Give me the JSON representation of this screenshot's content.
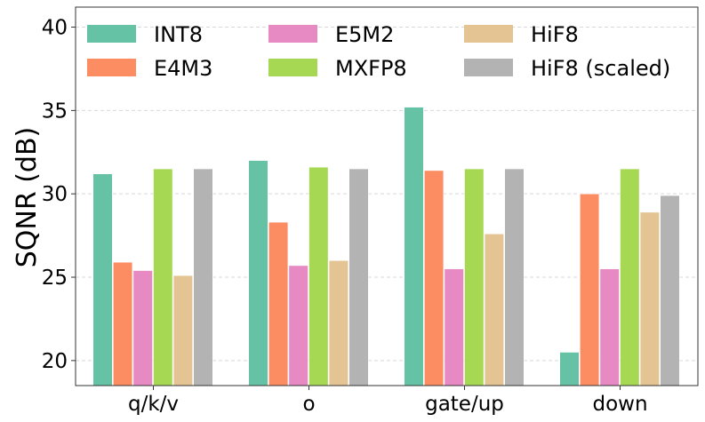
{
  "chart_data": {
    "type": "bar",
    "title": "",
    "xlabel": "",
    "ylabel": "SQNR (dB)",
    "ylim": [
      18.5,
      41.2
    ],
    "yticks": [
      20,
      25,
      30,
      35,
      40
    ],
    "grid": "horizontal-dashed",
    "legend_position": "top",
    "categories": [
      "q/k/v",
      "o",
      "gate/up",
      "down"
    ],
    "series": [
      {
        "name": "INT8",
        "color": "#66c2a5",
        "values": [
          31.2,
          32.0,
          35.2,
          20.5
        ]
      },
      {
        "name": "E4M3",
        "color": "#fc8d62",
        "values": [
          25.9,
          28.3,
          31.4,
          30.0
        ]
      },
      {
        "name": "E5M2",
        "color": "#e78ac3",
        "values": [
          25.4,
          25.7,
          25.5,
          25.5
        ]
      },
      {
        "name": "MXFP8",
        "color": "#a6d854",
        "values": [
          31.5,
          31.6,
          31.5,
          31.5
        ]
      },
      {
        "name": "HiF8",
        "color": "#e5c494",
        "values": [
          25.1,
          26.0,
          27.6,
          28.9
        ]
      },
      {
        "name": "HiF8 (scaled)",
        "color": "#b3b3b3",
        "values": [
          31.5,
          31.5,
          31.5,
          29.9
        ]
      }
    ]
  }
}
